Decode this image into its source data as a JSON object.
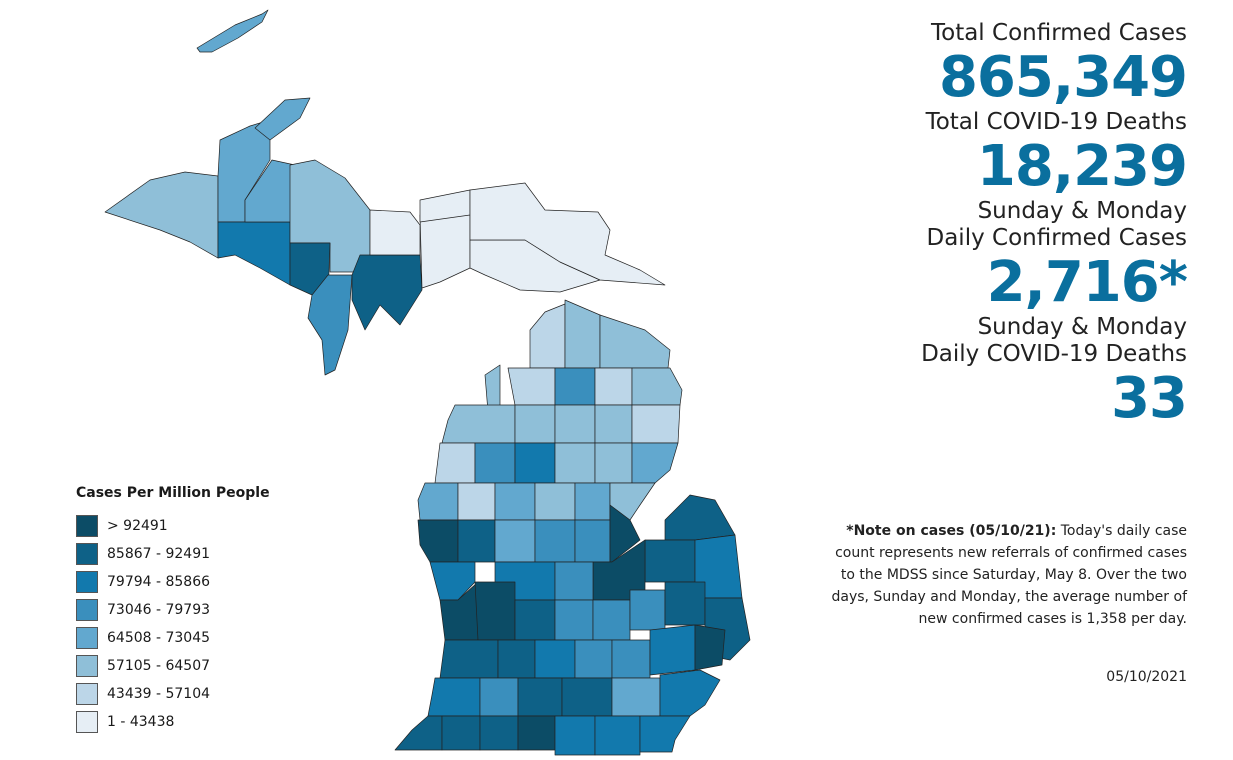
{
  "colors": {
    "bin1": "#0c4c66",
    "bin2": "#0e6187",
    "bin3": "#1279ad",
    "bin4": "#3a8fbd",
    "bin5": "#62a8cf",
    "bin6": "#8fbfd8",
    "bin7": "#bcd6e8",
    "bin8": "#e6eef5",
    "accent": "#0a6f9e"
  },
  "legend": {
    "title": "Cases Per Million People",
    "items": [
      {
        "label": "> 92491",
        "color": "#0c4c66"
      },
      {
        "label": "85867 - 92491",
        "color": "#0e6187"
      },
      {
        "label": "79794 - 85866",
        "color": "#1279ad"
      },
      {
        "label": "73046 - 79793",
        "color": "#3a8fbd"
      },
      {
        "label": "64508 - 73045",
        "color": "#62a8cf"
      },
      {
        "label": "57105 - 64507",
        "color": "#8fbfd8"
      },
      {
        "label": "43439 - 57104",
        "color": "#bcd6e8"
      },
      {
        "label": "1 - 43438",
        "color": "#e6eef5"
      }
    ]
  },
  "stats": {
    "total_cases_label": "Total Confirmed Cases",
    "total_cases": "865,349",
    "total_deaths_label": "Total COVID-19 Deaths",
    "total_deaths": "18,239",
    "daily_cases_label_1": "Sunday & Monday",
    "daily_cases_label_2": "Daily Confirmed Cases",
    "daily_cases": "2,716*",
    "daily_deaths_label_1": "Sunday & Monday",
    "daily_deaths_label_2": "Daily COVID-19 Deaths",
    "daily_deaths": "33"
  },
  "note": {
    "heading": "*Note on cases (05/10/21):",
    "body": "Today's daily case count represents new referrals of confirmed cases to the MDSS since Saturday, May 8.  Over the two days, Sunday and Monday, the average number of new confirmed cases is 1,358 per day.",
    "date": "05/10/2021"
  }
}
